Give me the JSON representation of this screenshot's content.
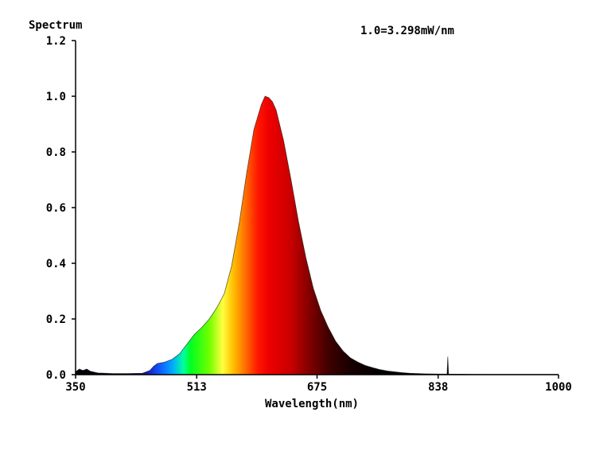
{
  "chart_data": {
    "type": "area",
    "ylabel": "Spectrum",
    "xlabel": "Wavelength(nm)",
    "annotation": "1.0=3.298mW/nm",
    "xlim": [
      350,
      1000
    ],
    "ylim": [
      0,
      1.2
    ],
    "x_ticks": [
      "350",
      "513",
      "675",
      "838",
      "1000"
    ],
    "y_ticks": [
      "0.0",
      "0.2",
      "0.4",
      "0.6",
      "0.8",
      "1.0",
      "1.2"
    ],
    "grid": false,
    "fill": "wavelength-spectrum colors",
    "series": [
      {
        "values": [
          [
            350,
            0.01
          ],
          [
            355,
            0.02
          ],
          [
            360,
            0.015
          ],
          [
            365,
            0.02
          ],
          [
            370,
            0.012
          ],
          [
            380,
            0.006
          ],
          [
            400,
            0.004
          ],
          [
            420,
            0.004
          ],
          [
            440,
            0.005
          ],
          [
            450,
            0.015
          ],
          [
            455,
            0.03
          ],
          [
            460,
            0.04
          ],
          [
            470,
            0.045
          ],
          [
            480,
            0.055
          ],
          [
            490,
            0.075
          ],
          [
            500,
            0.11
          ],
          [
            510,
            0.145
          ],
          [
            520,
            0.17
          ],
          [
            530,
            0.2
          ],
          [
            540,
            0.24
          ],
          [
            550,
            0.29
          ],
          [
            560,
            0.39
          ],
          [
            570,
            0.54
          ],
          [
            580,
            0.72
          ],
          [
            590,
            0.88
          ],
          [
            600,
            0.97
          ],
          [
            605,
            1.0
          ],
          [
            610,
            0.995
          ],
          [
            615,
            0.98
          ],
          [
            620,
            0.95
          ],
          [
            630,
            0.84
          ],
          [
            640,
            0.7
          ],
          [
            650,
            0.55
          ],
          [
            660,
            0.42
          ],
          [
            670,
            0.31
          ],
          [
            680,
            0.23
          ],
          [
            690,
            0.17
          ],
          [
            700,
            0.12
          ],
          [
            710,
            0.085
          ],
          [
            720,
            0.06
          ],
          [
            730,
            0.045
          ],
          [
            740,
            0.033
          ],
          [
            750,
            0.025
          ],
          [
            760,
            0.018
          ],
          [
            770,
            0.013
          ],
          [
            780,
            0.01
          ],
          [
            790,
            0.007
          ],
          [
            800,
            0.005
          ],
          [
            820,
            0.003
          ],
          [
            840,
            0.002
          ],
          [
            850,
            0.002
          ],
          [
            851,
            0.065
          ],
          [
            852,
            0.002
          ],
          [
            900,
            0.001
          ],
          [
            950,
            0.001
          ],
          [
            1000,
            0.001
          ]
        ]
      }
    ]
  }
}
